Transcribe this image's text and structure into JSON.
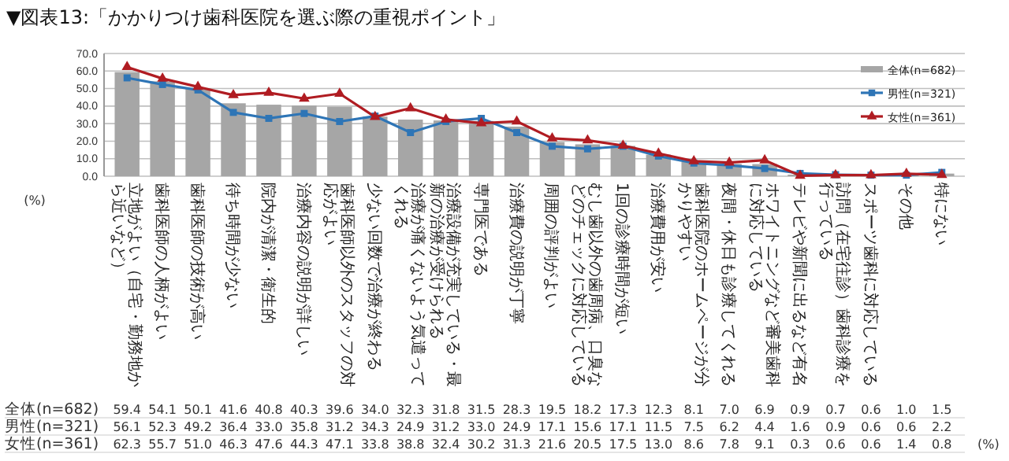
{
  "chart_data": {
    "type": "bar",
    "title": "▼図表13:「かかりつけ歯科医院を選ぶ際の重視ポイント」",
    "ylabel": "(%)",
    "categories": [
      "立地がよい（自宅・勤務地から近いなど）",
      "歯科医師の人柄がよい",
      "歯科医師の技術が高い",
      "待ち時間が少ない",
      "院内が清潔・衛生的",
      "治療内容の説明が詳しい",
      "歯科医師以外のスタッフの対応がよい",
      "少ない回数で治療が終わる",
      "治療が痛くないよう気遣ってくれる",
      "治療設備が充実している・最新の治療が受けられる",
      "専門医である",
      "治療費の説明が丁寧",
      "周囲の評判がよい",
      "むし歯以外の歯周病、口臭などのチェックに対応している",
      "1回の診療時間が短い",
      "治療費用が安い",
      "歯科医院のホームページが分かりやすい",
      "夜間・休日も診療してくれる",
      "ホワイトニングなど審美歯科に対応している",
      "テレビや新聞に出るなど有名",
      "訪問（在宅往診）歯科診療を行っている",
      "スポーツ歯科に対応している",
      "その他",
      "特にない"
    ],
    "series": [
      {
        "name": "全体(n=682)",
        "color": "#a6a6a6",
        "values": [
          59.4,
          54.1,
          50.1,
          41.6,
          40.8,
          40.3,
          39.6,
          34.0,
          32.3,
          31.8,
          31.5,
          28.3,
          19.5,
          18.2,
          17.3,
          12.3,
          8.1,
          7.0,
          6.9,
          0.9,
          0.7,
          0.6,
          1.0,
          1.5
        ],
        "value_labels": [
          "59.4",
          "54.1",
          "50.1",
          "41.6",
          "40.8",
          "40.3",
          "39.6",
          "34.0",
          "32.3",
          "31.8",
          "31.5",
          "28.3",
          "19.5",
          "18.2",
          "17.3",
          "12.3",
          "8.1",
          "7.0",
          "6.9",
          "0.9",
          "0.7",
          "0.6",
          "1.0",
          "1.5"
        ]
      },
      {
        "name": "男性(n=321)",
        "type": "line",
        "marker": "square",
        "color": "#2e75b6",
        "values": [
          56.1,
          52.3,
          49.2,
          36.4,
          33.0,
          35.8,
          31.2,
          34.3,
          24.9,
          31.2,
          33.0,
          24.9,
          17.1,
          15.6,
          17.1,
          11.5,
          7.5,
          6.2,
          4.4,
          1.6,
          0.9,
          0.6,
          0.6,
          2.2
        ],
        "value_labels": [
          "56.1",
          "52.3",
          "49.2",
          "36.4",
          "33.0",
          "35.8",
          "31.2",
          "34.3",
          "24.9",
          "31.2",
          "33.0",
          "24.9",
          "17.1",
          "15.6",
          "17.1",
          "11.5",
          "7.5",
          "6.2",
          "4.4",
          "1.6",
          "0.9",
          "0.6",
          "0.6",
          "2.2"
        ]
      },
      {
        "name": "女性(n=361)",
        "type": "line",
        "marker": "triangle",
        "color": "#b01c22",
        "values": [
          62.3,
          55.7,
          51.0,
          46.3,
          47.6,
          44.3,
          47.1,
          33.8,
          38.8,
          32.4,
          30.2,
          31.3,
          21.6,
          20.5,
          17.5,
          13.0,
          8.6,
          7.8,
          9.1,
          0.3,
          0.6,
          0.6,
          1.4,
          0.8
        ],
        "value_labels": [
          "62.3",
          "55.7",
          "51.0",
          "46.3",
          "47.6",
          "44.3",
          "47.1",
          "33.8",
          "38.8",
          "32.4",
          "30.2",
          "31.3",
          "21.6",
          "20.5",
          "17.5",
          "13.0",
          "8.6",
          "7.8",
          "9.1",
          "0.3",
          "0.6",
          "0.6",
          "1.4",
          "0.8"
        ]
      }
    ],
    "ylim": [
      0,
      70
    ],
    "yticks": [
      {
        "value": 0,
        "label": "0.0"
      },
      {
        "value": 10,
        "label": "10.0"
      },
      {
        "value": 20,
        "label": "20.0"
      },
      {
        "value": 30,
        "label": "30.0"
      },
      {
        "value": 40,
        "label": "40.0"
      },
      {
        "value": 50,
        "label": "50.0"
      },
      {
        "value": 60,
        "label": "60.0"
      },
      {
        "value": 70,
        "label": "70.0"
      }
    ],
    "grid": "y",
    "legend": "top right",
    "annotations": [
      "(%)"
    ]
  }
}
